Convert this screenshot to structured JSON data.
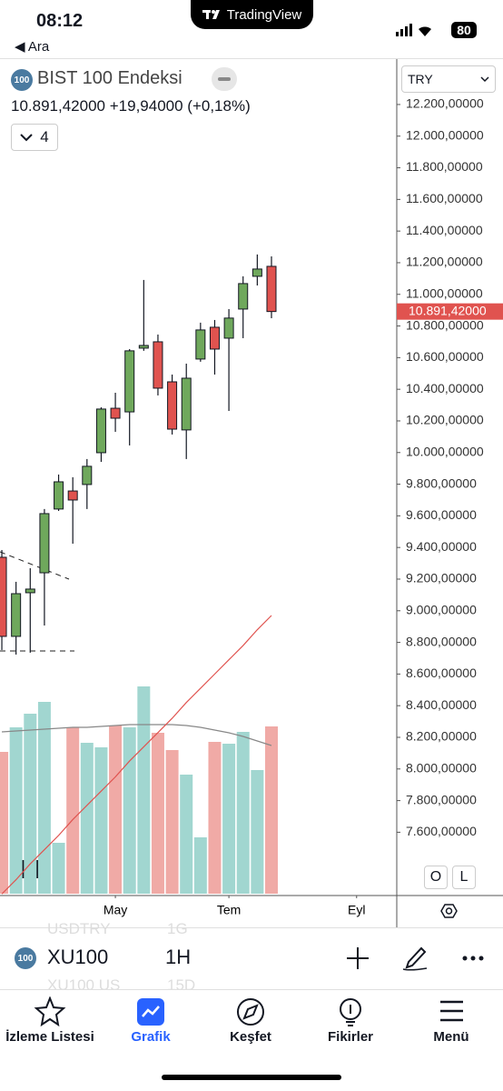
{
  "status_bar": {
    "time": "08:12",
    "back": "Ara",
    "app": "TradingView",
    "battery": "80"
  },
  "header": {
    "badge": "100",
    "title": "BIST 100 Endeksi",
    "price": "10.891,42000",
    "change": "+19,94000 (+0,18%)",
    "indicators": "4"
  },
  "currency": "TRY",
  "chart_data": {
    "type": "candlestick",
    "x": [
      0,
      1,
      2,
      3,
      4,
      5,
      6,
      7,
      8,
      9,
      10,
      11,
      12,
      13,
      14,
      15,
      16,
      17,
      18,
      19
    ],
    "xlim": [
      -0.13,
      27.83
    ],
    "xticks": [
      {
        "value": 8,
        "label": "May"
      },
      {
        "value": 16,
        "label": "Tem"
      },
      {
        "value": 25,
        "label": "Eyl"
      }
    ],
    "ylim": [
      7200,
      12487
    ],
    "yticks": [
      {
        "value": 12200,
        "label": "12.200,00000"
      },
      {
        "value": 12000,
        "label": "12.000,00000"
      },
      {
        "value": 11800,
        "label": "11.800,00000"
      },
      {
        "value": 11600,
        "label": "11.600,00000"
      },
      {
        "value": 11400,
        "label": "11.400,00000"
      },
      {
        "value": 11200,
        "label": "11.200,00000"
      },
      {
        "value": 11000,
        "label": "11.000,00000"
      },
      {
        "value": 10800,
        "label": "10.800,00000"
      },
      {
        "value": 10600,
        "label": "10.600,00000"
      },
      {
        "value": 10400,
        "label": "10.400,00000"
      },
      {
        "value": 10200,
        "label": "10.200,00000"
      },
      {
        "value": 10000,
        "label": "10.000,00000"
      },
      {
        "value": 9800,
        "label": "9.800,00000"
      },
      {
        "value": 9600,
        "label": "9.600,00000"
      },
      {
        "value": 9400,
        "label": "9.400,00000"
      },
      {
        "value": 9200,
        "label": "9.200,00000"
      },
      {
        "value": 9000,
        "label": "9.000,00000"
      },
      {
        "value": 8800,
        "label": "8.800,00000"
      },
      {
        "value": 8600,
        "label": "8.600,00000"
      },
      {
        "value": 8400,
        "label": "8.400,00000"
      },
      {
        "value": 8200,
        "label": "8.200,00000"
      },
      {
        "value": 8000,
        "label": "8.000,00000"
      },
      {
        "value": 7800,
        "label": "7.800,00000"
      },
      {
        "value": 7600,
        "label": "7.600,00000"
      }
    ],
    "open": [
      9338,
      8838,
      9114,
      9240,
      9643,
      9757,
      9798,
      9999,
      10280,
      10257,
      10660,
      10700,
      10447,
      10143,
      10591,
      10792,
      10723,
      10907,
      11114,
      11177
    ],
    "high": [
      9384,
      9183,
      9269,
      9643,
      9861,
      9844,
      9959,
      10286,
      10378,
      10654,
      11091,
      10746,
      10493,
      10562,
      10821,
      10838,
      10907,
      11114,
      11252,
      11240
    ],
    "low": [
      8752,
      8723,
      8735,
      8907,
      9631,
      9424,
      9643,
      9941,
      10131,
      10045,
      10643,
      10361,
      10114,
      9959,
      10574,
      10493,
      10263,
      10723,
      11056,
      10849
    ],
    "close": [
      8838,
      9108,
      9137,
      9614,
      9815,
      9700,
      9913,
      10275,
      10217,
      10643,
      10677,
      10407,
      10148,
      10470,
      10775,
      10654,
      10850,
      11068,
      11160,
      10891.42
    ],
    "up_color": "#6fa85c",
    "down_color": "#e0534f",
    "last_label": {
      "value": 10891.42,
      "label": "10.891,42000"
    },
    "ma": {
      "color": "#e0534f",
      "values": [
        7210,
        7300,
        7400,
        7490,
        7580,
        7680,
        7770,
        7860,
        7950,
        8050,
        8140,
        8230,
        8320,
        8420,
        8510,
        8600,
        8690,
        8780,
        8880,
        8970
      ]
    },
    "volume": {
      "ylim": [
        0,
        918
      ],
      "up_color": "#a1d6d0",
      "down_color": "#f0aaa6",
      "ma_color": "#888888",
      "values": [
        156,
        183,
        198,
        211,
        56,
        183,
        166,
        161,
        185,
        183,
        228,
        177,
        158,
        131,
        62,
        167,
        165,
        178,
        136,
        184
      ],
      "ma": [
        178,
        179,
        180,
        181,
        182,
        183,
        183,
        184,
        185,
        186,
        186,
        186,
        186,
        185,
        183,
        180,
        177,
        173,
        168,
        163
      ]
    }
  },
  "scale_buttons": [
    "O",
    "L"
  ],
  "symbol_bar": {
    "badge": "100",
    "symbol": "XU100",
    "interval": "1H",
    "above": [
      "USDTRY",
      "1G"
    ],
    "below": [
      "XU100 US",
      "15D"
    ]
  },
  "tabs": [
    "İzleme Listesi",
    "Grafik",
    "Keşfet",
    "Fikirler",
    "Menü"
  ]
}
